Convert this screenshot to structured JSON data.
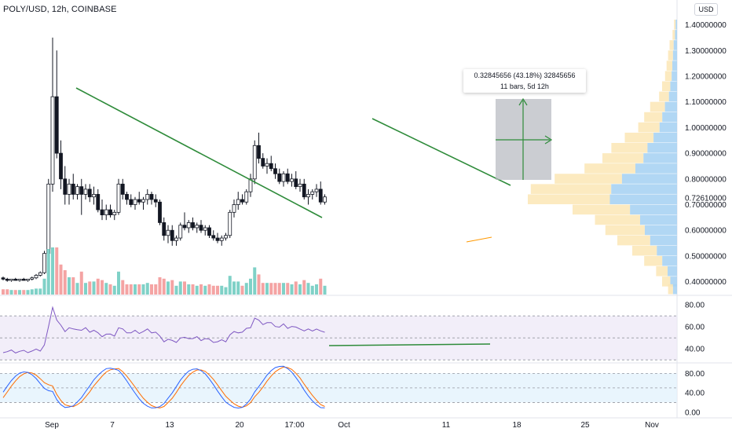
{
  "header": {
    "title": "POLY/USD, 12h, COINBASE",
    "currency_button": "USD"
  },
  "measure_tool": {
    "line1": "0.32845656 (43.18%) 32845656",
    "line2": "11 bars, 5d 12h"
  },
  "price_axis": {
    "labels": [
      "1.40000000",
      "1.30000000",
      "1.20000000",
      "1.10000000",
      "1.00000000",
      "0.90000000",
      "0.80000000",
      "0.70000000",
      "0.60000000",
      "0.50000000",
      "0.40000000"
    ],
    "current_price": "0.72610000"
  },
  "rsi_axis": {
    "labels": [
      "80.00",
      "60.00",
      "40.00"
    ]
  },
  "stoch_axis": {
    "labels": [
      "80.00",
      "40.00",
      "0.00"
    ]
  },
  "time_axis": {
    "labels": [
      "Sep",
      "7",
      "13",
      "20",
      "17:00",
      "Oct",
      "11",
      "18",
      "25",
      "Nov"
    ]
  },
  "colors": {
    "up": "#26a69a",
    "down": "#131722",
    "trendline": "#2e8b3a",
    "rsi_line": "#7e57c2",
    "stoch_k": "#2962ff",
    "stoch_d": "#ff6d00",
    "volume_up": "#7fd1c7",
    "volume_down": "#f4a3a3"
  },
  "chart_data": {
    "type": "candlestick",
    "symbol": "POLY/USD",
    "interval": "12h",
    "exchange": "COINBASE",
    "ylim": [
      0.35,
      1.42
    ],
    "candles": [
      [
        0.415,
        0.42,
        0.405,
        0.41
      ],
      [
        0.41,
        0.415,
        0.4,
        0.405
      ],
      [
        0.405,
        0.41,
        0.4,
        0.41
      ],
      [
        0.41,
        0.415,
        0.405,
        0.405
      ],
      [
        0.405,
        0.41,
        0.4,
        0.41
      ],
      [
        0.41,
        0.415,
        0.405,
        0.405
      ],
      [
        0.405,
        0.41,
        0.4,
        0.41
      ],
      [
        0.41,
        0.42,
        0.405,
        0.415
      ],
      [
        0.415,
        0.43,
        0.41,
        0.425
      ],
      [
        0.425,
        0.44,
        0.42,
        0.435
      ],
      [
        0.435,
        0.52,
        0.43,
        0.51
      ],
      [
        0.51,
        0.8,
        0.5,
        0.78
      ],
      [
        0.78,
        1.35,
        0.75,
        1.12
      ],
      [
        1.12,
        1.3,
        0.88,
        0.9
      ],
      [
        0.9,
        0.95,
        0.76,
        0.8
      ],
      [
        0.8,
        0.85,
        0.7,
        0.74
      ],
      [
        0.74,
        0.8,
        0.7,
        0.78
      ],
      [
        0.78,
        0.82,
        0.72,
        0.74
      ],
      [
        0.74,
        0.78,
        0.72,
        0.77
      ],
      [
        0.77,
        0.8,
        0.66,
        0.74
      ],
      [
        0.74,
        0.78,
        0.72,
        0.76
      ],
      [
        0.76,
        0.78,
        0.71,
        0.73
      ],
      [
        0.73,
        0.77,
        0.7,
        0.74
      ],
      [
        0.74,
        0.76,
        0.67,
        0.68
      ],
      [
        0.68,
        0.72,
        0.64,
        0.66
      ],
      [
        0.66,
        0.7,
        0.64,
        0.68
      ],
      [
        0.68,
        0.7,
        0.65,
        0.66
      ],
      [
        0.66,
        0.68,
        0.64,
        0.67
      ],
      [
        0.67,
        0.8,
        0.66,
        0.78
      ],
      [
        0.78,
        0.8,
        0.72,
        0.74
      ],
      [
        0.74,
        0.75,
        0.7,
        0.72
      ],
      [
        0.72,
        0.74,
        0.69,
        0.7
      ],
      [
        0.7,
        0.73,
        0.68,
        0.72
      ],
      [
        0.72,
        0.75,
        0.7,
        0.71
      ],
      [
        0.71,
        0.73,
        0.68,
        0.72
      ],
      [
        0.72,
        0.76,
        0.7,
        0.74
      ],
      [
        0.74,
        0.75,
        0.7,
        0.72
      ],
      [
        0.72,
        0.74,
        0.69,
        0.71
      ],
      [
        0.71,
        0.72,
        0.62,
        0.63
      ],
      [
        0.63,
        0.65,
        0.56,
        0.58
      ],
      [
        0.58,
        0.62,
        0.55,
        0.6
      ],
      [
        0.6,
        0.62,
        0.54,
        0.56
      ],
      [
        0.56,
        0.58,
        0.54,
        0.57
      ],
      [
        0.57,
        0.63,
        0.56,
        0.62
      ],
      [
        0.62,
        0.67,
        0.6,
        0.61
      ],
      [
        0.61,
        0.64,
        0.59,
        0.63
      ],
      [
        0.63,
        0.65,
        0.6,
        0.61
      ],
      [
        0.61,
        0.63,
        0.59,
        0.62
      ],
      [
        0.62,
        0.64,
        0.59,
        0.6
      ],
      [
        0.6,
        0.62,
        0.58,
        0.61
      ],
      [
        0.61,
        0.62,
        0.57,
        0.58
      ],
      [
        0.58,
        0.6,
        0.56,
        0.57
      ],
      [
        0.57,
        0.59,
        0.55,
        0.56
      ],
      [
        0.56,
        0.58,
        0.54,
        0.57
      ],
      [
        0.57,
        0.59,
        0.56,
        0.58
      ],
      [
        0.58,
        0.68,
        0.57,
        0.67
      ],
      [
        0.67,
        0.72,
        0.65,
        0.7
      ],
      [
        0.7,
        0.75,
        0.68,
        0.72
      ],
      [
        0.72,
        0.74,
        0.7,
        0.71
      ],
      [
        0.71,
        0.76,
        0.7,
        0.75
      ],
      [
        0.75,
        0.82,
        0.73,
        0.8
      ],
      [
        0.8,
        0.95,
        0.78,
        0.93
      ],
      [
        0.93,
        0.98,
        0.86,
        0.88
      ],
      [
        0.88,
        0.9,
        0.84,
        0.85
      ],
      [
        0.85,
        0.88,
        0.82,
        0.86
      ],
      [
        0.86,
        0.89,
        0.83,
        0.84
      ],
      [
        0.84,
        0.86,
        0.8,
        0.82
      ],
      [
        0.82,
        0.84,
        0.78,
        0.79
      ],
      [
        0.79,
        0.83,
        0.77,
        0.82
      ],
      [
        0.82,
        0.84,
        0.78,
        0.79
      ],
      [
        0.79,
        0.82,
        0.77,
        0.8
      ],
      [
        0.8,
        0.83,
        0.76,
        0.77
      ],
      [
        0.77,
        0.8,
        0.75,
        0.78
      ],
      [
        0.78,
        0.8,
        0.72,
        0.73
      ],
      [
        0.73,
        0.76,
        0.7,
        0.74
      ],
      [
        0.74,
        0.76,
        0.72,
        0.75
      ],
      [
        0.75,
        0.78,
        0.73,
        0.76
      ],
      [
        0.76,
        0.79,
        0.7,
        0.71
      ],
      [
        0.71,
        0.74,
        0.7,
        0.73
      ]
    ]
  }
}
